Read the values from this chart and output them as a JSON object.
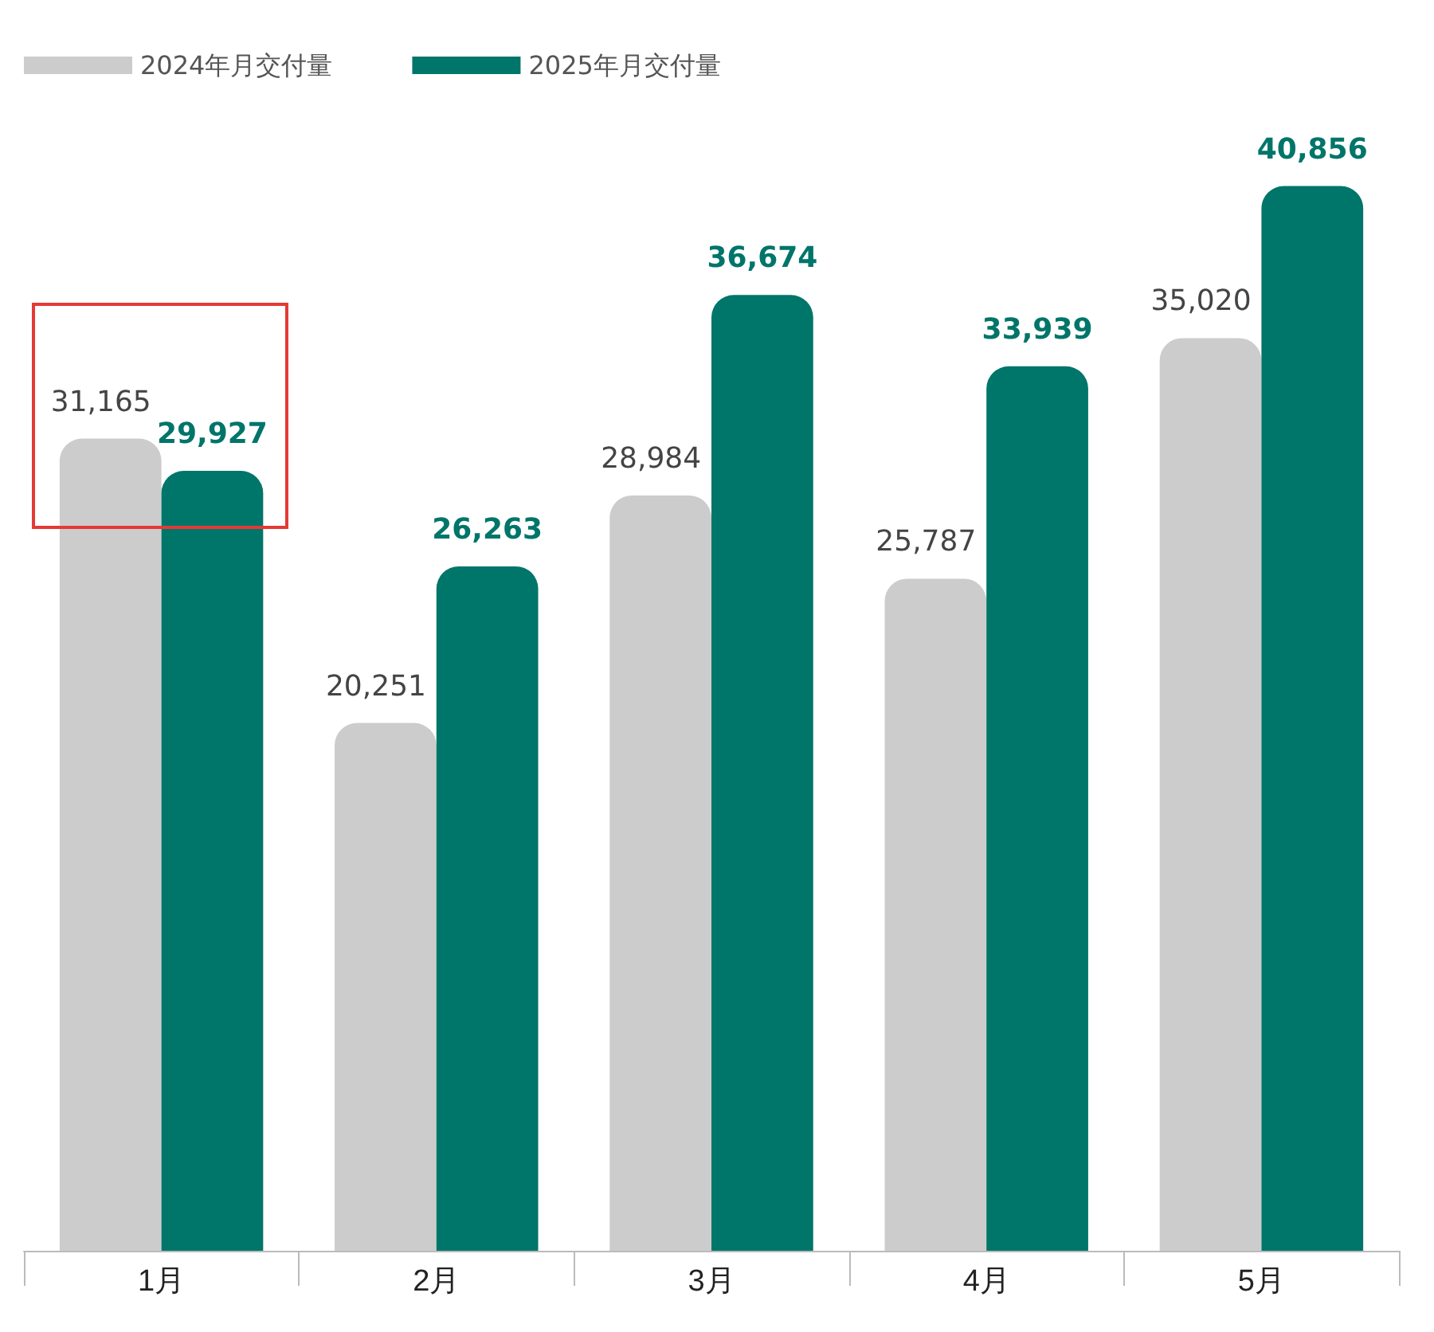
{
  "chart_data": {
    "type": "bar",
    "categories": [
      "1月",
      "2月",
      "3月",
      "4月",
      "5月"
    ],
    "series": [
      {
        "name": "2024年月交付量",
        "color": "#cccccc",
        "values": [
          31165,
          20251,
          28984,
          25787,
          35020
        ],
        "value_labels": [
          "31,165",
          "20,251",
          "28,984",
          "25,787",
          "35,020"
        ]
      },
      {
        "name": "2025年月交付量",
        "color": "#00756a",
        "values": [
          29927,
          26263,
          36674,
          33939,
          40856
        ],
        "value_labels": [
          "29,927",
          "26,263",
          "36,674",
          "33,939",
          "40,856"
        ]
      }
    ],
    "legend": "top left"
  }
}
